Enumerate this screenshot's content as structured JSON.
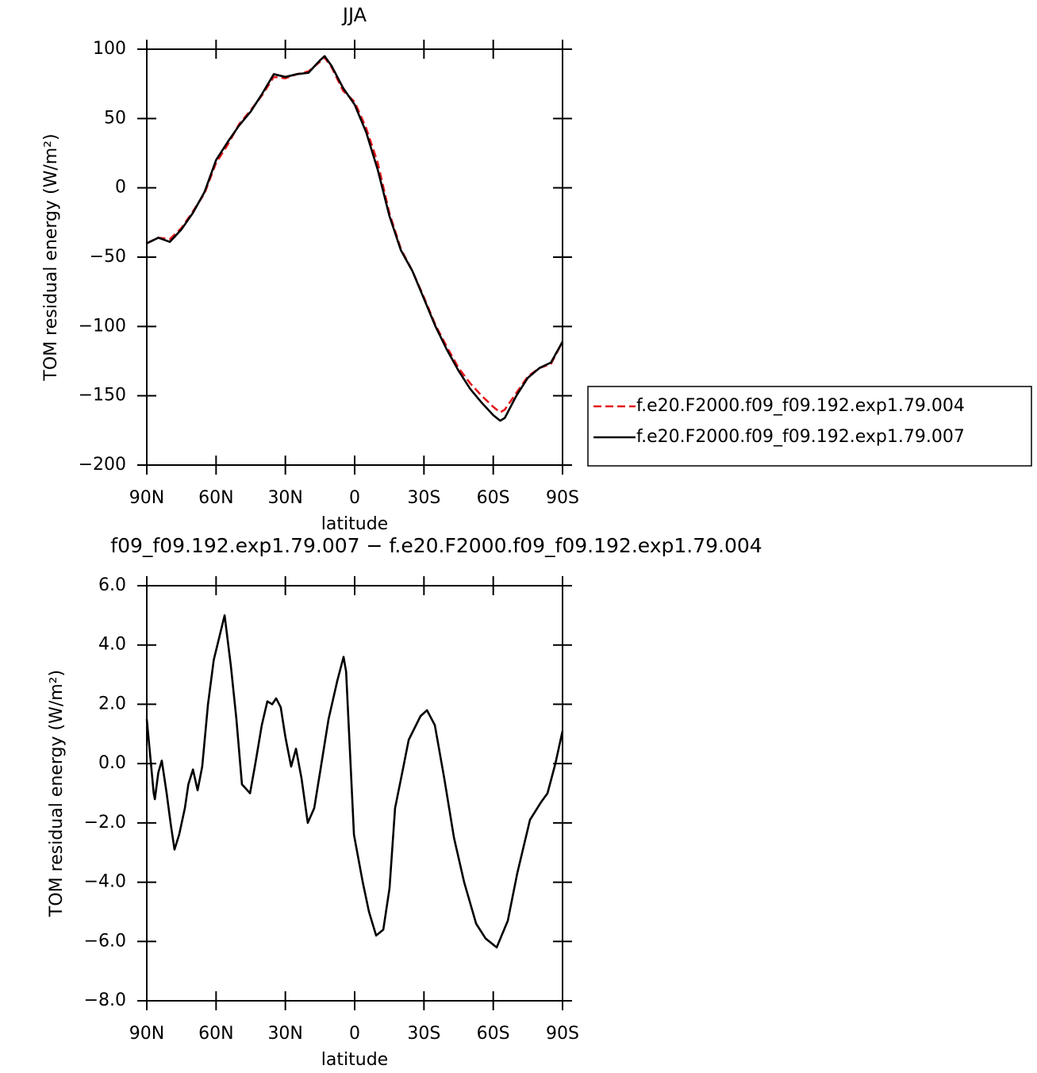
{
  "chart_data": [
    {
      "type": "line",
      "title": "JJA",
      "xlabel": "latitude",
      "ylabel": "TOM residual energy (W/m²)",
      "x": [
        90,
        85,
        80,
        75,
        70,
        65,
        60,
        55,
        50,
        45,
        40,
        35,
        30,
        25,
        20,
        15,
        13,
        10,
        5,
        0,
        -5,
        -10,
        -15,
        -20,
        -25,
        -30,
        -35,
        -40,
        -45,
        -50,
        -55,
        -60,
        -63,
        -65,
        -70,
        -75,
        -80,
        -85,
        -90
      ],
      "series": [
        {
          "name": "f.e20.F2000.f09_f09.192.exp1.79.004",
          "color": "#e41a1c",
          "linestyle": "dashed",
          "values": [
            -40,
            -36,
            -37,
            -29,
            -17,
            -4,
            18,
            31,
            46,
            56,
            67,
            80,
            79,
            82,
            84,
            91,
            94,
            87,
            70,
            62,
            43,
            18,
            -18,
            -44,
            -60,
            -79,
            -99,
            -115,
            -130,
            -141,
            -150,
            -158,
            -162,
            -160,
            -148,
            -136,
            -130,
            -127,
            -111
          ]
        },
        {
          "name": "f.e20.F2000.f09_f09.192.exp1.79.007",
          "color": "#000000",
          "linestyle": "solid",
          "values": [
            -40,
            -36,
            -39,
            -30,
            -18,
            -3,
            20,
            33,
            45,
            55,
            68,
            82,
            80,
            82,
            83,
            92,
            95,
            88,
            72,
            60,
            40,
            13,
            -20,
            -45,
            -60,
            -80,
            -100,
            -117,
            -132,
            -145,
            -155,
            -164,
            -168,
            -166,
            -150,
            -137,
            -130,
            -126,
            -111
          ]
        }
      ],
      "xlim": [
        90,
        -90
      ],
      "xticks": [
        {
          "value": 90,
          "label": "90N"
        },
        {
          "value": 60,
          "label": "60N"
        },
        {
          "value": 30,
          "label": "30N"
        },
        0,
        {
          "value": -30,
          "label": "30S"
        },
        {
          "value": -60,
          "label": "60S"
        },
        {
          "value": -90,
          "label": "90S"
        }
      ],
      "ylim": [
        -200,
        100
      ],
      "yticks": [
        {
          "value": -200,
          "label": "−200"
        },
        {
          "value": -150,
          "label": "−150"
        },
        {
          "value": -100,
          "label": "−100"
        },
        {
          "value": -50,
          "label": "−50"
        },
        0,
        50,
        100
      ],
      "legend": "right"
    },
    {
      "type": "line",
      "title": "f09_f09.192.exp1.79.007 − f.e20.F2000.f09_f09.192.exp1.79.004",
      "xlabel": "latitude",
      "ylabel": "TOM residual energy (W/m²)",
      "x": [
        90,
        87,
        86.5,
        85,
        83.5,
        81.4,
        79.7,
        78,
        76,
        73.5,
        72,
        70,
        68,
        66,
        63.5,
        61,
        56.3,
        53.6,
        51.2,
        48.8,
        45.3,
        43,
        40.2,
        37.8,
        35.7,
        34,
        32,
        30,
        27.5,
        25.4,
        23,
        20.3,
        17.5,
        14.8,
        11.3,
        7.5,
        4.8,
        3.7,
        0.3,
        -3.5,
        -6.2,
        -9.3,
        -12.4,
        -15.1,
        -17.5,
        -20.6,
        -23.4,
        -28.5,
        -31.3,
        -34.7,
        -38.8,
        -43,
        -47.4,
        -52.6,
        -56.7,
        -61.5,
        -66.3,
        -70.4,
        -75.9,
        -80.7,
        -83.5,
        -86.9,
        -90
      ],
      "values": [
        1.5,
        -1.0,
        -1.2,
        -0.3,
        0.1,
        -1.0,
        -2.0,
        -2.9,
        -2.4,
        -1.5,
        -0.7,
        -0.2,
        -0.9,
        -0.1,
        2.0,
        3.5,
        5.0,
        3.3,
        1.5,
        -0.7,
        -1.0,
        0.0,
        1.3,
        2.1,
        2.0,
        2.2,
        1.9,
        0.9,
        -0.1,
        0.5,
        -0.5,
        -2.0,
        -1.5,
        -0.2,
        1.5,
        2.8,
        3.6,
        3.1,
        -2.4,
        -4.0,
        -5.0,
        -5.8,
        -5.6,
        -4.2,
        -1.5,
        -0.3,
        0.8,
        1.6,
        1.8,
        1.3,
        -0.5,
        -2.5,
        -4.0,
        -5.4,
        -5.9,
        -6.2,
        -5.3,
        -3.7,
        -1.9,
        -1.3,
        -1.0,
        0.0,
        1.1
      ],
      "color": "#000000",
      "xlim": [
        90,
        -90
      ],
      "xticks": [
        {
          "value": 90,
          "label": "90N"
        },
        {
          "value": 60,
          "label": "60N"
        },
        {
          "value": 30,
          "label": "30N"
        },
        0,
        {
          "value": -30,
          "label": "30S"
        },
        {
          "value": -60,
          "label": "60S"
        },
        {
          "value": -90,
          "label": "90S"
        }
      ],
      "ylim": [
        -8,
        6
      ],
      "yticks": [
        {
          "value": -8,
          "label": "−8.0"
        },
        {
          "value": -6,
          "label": "−6.0"
        },
        {
          "value": -4,
          "label": "−4.0"
        },
        {
          "value": -2,
          "label": "−2.0"
        },
        {
          "value": 0,
          "label": "0.0"
        },
        {
          "value": 2,
          "label": "2.0"
        },
        {
          "value": 4,
          "label": "4.0"
        },
        {
          "value": 6,
          "label": "6.0"
        }
      ]
    }
  ]
}
